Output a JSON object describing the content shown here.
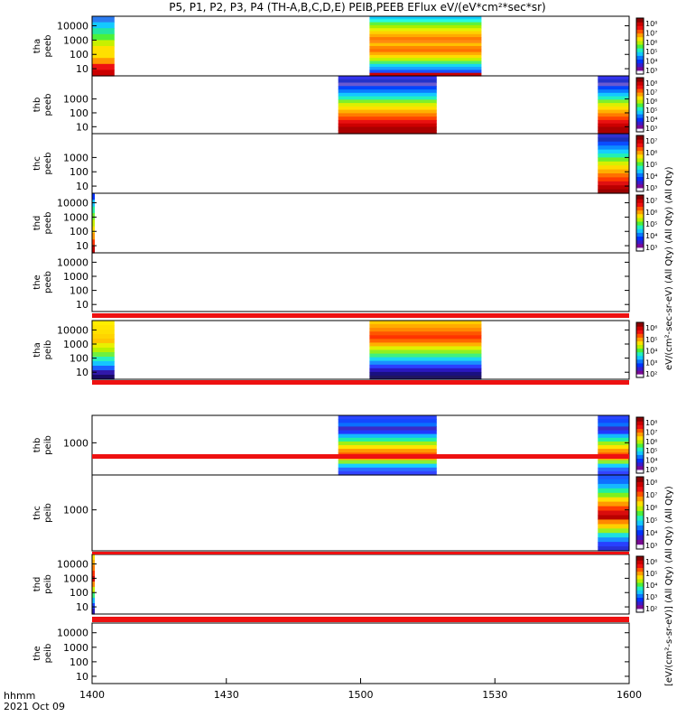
{
  "chart_data": {
    "type": "heatmap",
    "title": "P5, P1, P2, P3, P4 (TH-A,B,C,D,E) PEIB,PEEB EFlux eV/(eV*cm²*sec*sr)",
    "x_axis": {
      "label_top": "hhmm",
      "label_bottom": "2021 Oct 09",
      "range": [
        "14:00",
        "16:00"
      ],
      "ticks": [
        {
          "t": 0,
          "label": "1400"
        },
        {
          "t": 30,
          "label": "1430"
        },
        {
          "t": 60,
          "label": "1500"
        },
        {
          "t": 90,
          "label": "1530"
        },
        {
          "t": 120,
          "label": "1600"
        }
      ]
    },
    "colorbar_label_electrons": "eV/(cm²-sec-sr-eV) (All Qty) (All Qty) (All Qty)",
    "colorbar_label_ions": "[eV/(cm²-s-sr-eV)] (All Qty) (All Qty) (All Qty)",
    "panels": [
      {
        "id": "tha-peeb",
        "l1": "tha",
        "l2": "peeb",
        "ylog": true,
        "ytick_labels": [
          "10",
          "100",
          "1000",
          "10000"
        ],
        "cb_ticks": [
          "10⁸",
          "10⁷",
          "10⁶",
          "10⁵",
          "10⁴",
          "10³"
        ],
        "segments": [
          {
            "start": 0,
            "end": 5,
            "palette": "tha_peeb_start"
          },
          {
            "start": 62,
            "end": 87,
            "palette": "tha_peeb_burst"
          }
        ]
      },
      {
        "id": "thb-peeb",
        "l1": "thb",
        "l2": "peeb",
        "ylog": true,
        "ytick_labels": [
          "10",
          "100",
          "1000"
        ],
        "cb_ticks": [
          "10⁸",
          "10⁷",
          "10⁶",
          "10⁵",
          "10⁴",
          "10³"
        ],
        "segments": [
          {
            "start": 55,
            "end": 77,
            "palette": "thb_peeb"
          },
          {
            "start": 113,
            "end": 120,
            "palette": "thb_peeb"
          }
        ]
      },
      {
        "id": "thc-peeb",
        "l1": "thc",
        "l2": "peeb",
        "ylog": true,
        "ytick_labels": [
          "10",
          "100",
          "1000"
        ],
        "cb_ticks": [
          "10⁷",
          "10⁶",
          "10⁵",
          "10⁴",
          "10³"
        ],
        "segments": [
          {
            "start": 113,
            "end": 120,
            "palette": "thc_peeb"
          }
        ]
      },
      {
        "id": "thd-peeb",
        "l1": "thd",
        "l2": "peeb",
        "ylog": true,
        "ytick_labels": [
          "10",
          "100",
          "1000",
          "10000"
        ],
        "cb_ticks": [
          "10⁷",
          "10⁶",
          "10⁵",
          "10⁴",
          "10³"
        ],
        "segments": [
          {
            "start": 0,
            "end": 0.6,
            "palette": "thd_peeb"
          }
        ]
      },
      {
        "id": "the-peeb",
        "l1": "the",
        "l2": "peeb",
        "ylog": true,
        "ytick_labels": [
          "10",
          "100",
          "1000",
          "10000"
        ],
        "cb_ticks": [],
        "segments": []
      },
      {
        "id": "tha-peib",
        "l1": "tha",
        "l2": "peib",
        "ylog": true,
        "ytick_labels": [
          "10",
          "100",
          "1000",
          "10000"
        ],
        "cb_ticks": [
          "10⁶",
          "10⁵",
          "10⁴",
          "10³",
          "10²"
        ],
        "segments": [
          {
            "start": 0,
            "end": 5,
            "palette": "tha_peib_start"
          },
          {
            "start": 62,
            "end": 87,
            "palette": "tha_peib_burst"
          }
        ]
      },
      {
        "id": "thb-peib",
        "l1": "thb",
        "l2": "peib",
        "ylog": true,
        "ytick_labels": [
          "1000"
        ],
        "cb_ticks": [
          "10⁸",
          "10⁷",
          "10⁶",
          "10⁵",
          "10⁴",
          "10³"
        ],
        "segments": [
          {
            "start": 55,
            "end": 77,
            "palette": "thb_peib"
          },
          {
            "start": 113,
            "end": 120,
            "palette": "thb_peib"
          }
        ]
      },
      {
        "id": "thc-peib",
        "l1": "thc",
        "l2": "peib",
        "ylog": true,
        "ytick_labels": [
          "1000"
        ],
        "cb_ticks": [
          "10⁸",
          "10⁷",
          "10⁶",
          "10⁵",
          "10⁴",
          "10³"
        ],
        "segments": [
          {
            "start": 113,
            "end": 120,
            "palette": "thc_peib"
          }
        ]
      },
      {
        "id": "thd-peib",
        "l1": "thd",
        "l2": "peib",
        "ylog": true,
        "ytick_labels": [
          "10",
          "100",
          "1000",
          "10000"
        ],
        "cb_ticks": [
          "10⁶",
          "10⁵",
          "10⁴",
          "10³",
          "10²"
        ],
        "segments": [
          {
            "start": 0,
            "end": 0.6,
            "palette": "thd_peib"
          }
        ]
      },
      {
        "id": "the-peib",
        "l1": "the",
        "l2": "peib",
        "ylog": true,
        "ytick_labels": [
          "10",
          "100",
          "1000",
          "10000"
        ],
        "cb_ticks": [],
        "segments": []
      }
    ],
    "palettes": {
      "tha_peeb_start": [
        "#2c7cf0",
        "#14c9ff",
        "#23e6a1",
        "#4cf13a",
        "#c8f000",
        "#ffe000",
        "#ffe000",
        "#ff9900",
        "#ee1111",
        "#cc0000"
      ],
      "tha_peeb_burst": [
        "#13d0ff",
        "#2afae0",
        "#5ff33b",
        "#a7f000",
        "#e8f000",
        "#ffd100",
        "#ffaa00",
        "#ff7a00",
        "#ff8a10",
        "#ffc000",
        "#ff8800",
        "#ff7000",
        "#ffaa00",
        "#ffdd00",
        "#bff400",
        "#4ff06a",
        "#16d8f0",
        "#1aa0ff",
        "#1850ff",
        "#cc0000"
      ],
      "thb_peeb": [
        "#3333ee",
        "#2233cc",
        "#6a5ad0",
        "#0044ff",
        "#0a7cff",
        "#14c8ff",
        "#22f0c0",
        "#7ff02a",
        "#dcf000",
        "#ffe000",
        "#ffb000",
        "#ff7a00",
        "#ff4400",
        "#e81010",
        "#cc0000",
        "#aa0000",
        "#aa0000"
      ],
      "thc_peeb": [
        "#3131d0",
        "#1b2fb8",
        "#0a4cff",
        "#0c8cff",
        "#16cfff",
        "#22f0b5",
        "#6ef02a",
        "#d6f000",
        "#ffda00",
        "#ffae00",
        "#ff7000",
        "#ff3a00",
        "#e01010",
        "#bb0000",
        "#9a0000"
      ],
      "thd_peeb": [
        "#0033ff",
        "#15c8ff",
        "#2af0a0",
        "#6df030",
        "#c8f000",
        "#ffe000",
        "#ff9900",
        "#ff3300",
        "#bb0000"
      ],
      "tha_peib_start": [
        "#ffee00",
        "#ffe600",
        "#ffe000",
        "#ffd400",
        "#ffc400",
        "#e9f000",
        "#b8f000",
        "#6ef040",
        "#28f0c0",
        "#15c5ff",
        "#1a60ff",
        "#3018aa",
        "#1a0a66"
      ],
      "tha_peib_burst": [
        "#ffcc00",
        "#ffaa00",
        "#ff8800",
        "#ff5500",
        "#ff3300",
        "#ff6600",
        "#ffb000",
        "#e0f000",
        "#90f020",
        "#40f080",
        "#1ad8f0",
        "#1a90ff",
        "#2a40ff",
        "#2a18c0",
        "#1a1080",
        "#201560"
      ],
      "thb_peib": [
        "#2a45ff",
        "#1448ff",
        "#0a70ff",
        "#3b2bc8",
        "#2238ff",
        "#14b8ff",
        "#22f0a5",
        "#9ef015",
        "#ffe400",
        "#ff9a00",
        "#ff5a00",
        "#ffb000",
        "#8ef030",
        "#16d0ff",
        "#2d6bff",
        "#3344ff"
      ],
      "thc_peib": [
        "#1e58ff",
        "#0e70ff",
        "#16b8ff",
        "#20f0a0",
        "#7ef01e",
        "#ffe000",
        "#ff9a00",
        "#ff3c00",
        "#d80c0c",
        "#b80000",
        "#ff8800",
        "#ffd000",
        "#9cf020",
        "#1ee0e0",
        "#1990ff",
        "#2840ff",
        "#2830d8"
      ],
      "thd_peib": [
        "#ffdd00",
        "#ffb000",
        "#ff7a00",
        "#ff3000",
        "#cc0000",
        "#ff8800",
        "#c8f000",
        "#3cf080",
        "#18b8ff",
        "#1a44ff",
        "#2a1ab0"
      ]
    },
    "colorscale": [
      "#f5f5ff",
      "#7a0a94",
      "#3a1ccc",
      "#0033ff",
      "#0a77ff",
      "#13c8ff",
      "#20f0c0",
      "#4bf03a",
      "#b8f000",
      "#ffe000",
      "#ffa000",
      "#ff5500",
      "#ee1111",
      "#cc0000",
      "#8a0000"
    ]
  }
}
